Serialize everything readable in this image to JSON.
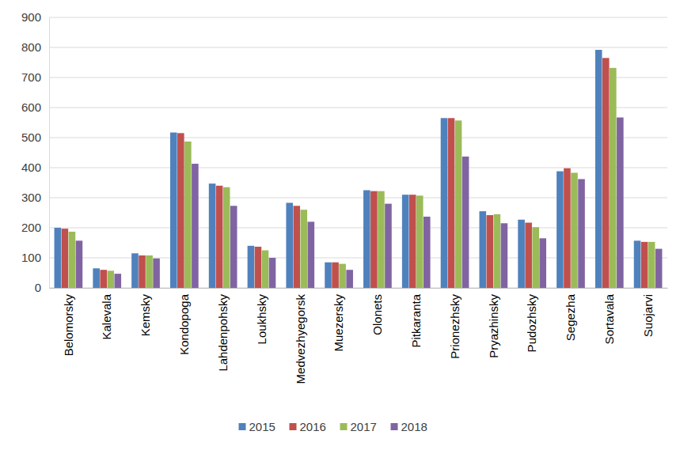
{
  "chart_data": {
    "type": "bar",
    "categories": [
      "Belomorsky",
      "Kalevala",
      "Kemsky",
      "Kondopoga",
      "Lahdenpohsky",
      "Loukhsky",
      "Medvezhyegorsk",
      "Muezersky",
      "Olonets",
      "Pitkaranta",
      "Prionezhsky",
      "Pryazhinsky",
      "Pudozhsky",
      "Segezha",
      "Sortavala",
      "Suojarvi"
    ],
    "series": [
      {
        "name": "2015",
        "color": "#4f81bd",
        "values": [
          200,
          65,
          115,
          517,
          347,
          140,
          283,
          85,
          325,
          310,
          565,
          255,
          227,
          388,
          792,
          157
        ]
      },
      {
        "name": "2016",
        "color": "#c0504d",
        "values": [
          197,
          60,
          108,
          515,
          340,
          137,
          273,
          85,
          322,
          310,
          565,
          242,
          217,
          398,
          765,
          153
        ]
      },
      {
        "name": "2017",
        "color": "#9bbb59",
        "values": [
          187,
          57,
          108,
          487,
          335,
          125,
          260,
          80,
          322,
          307,
          557,
          245,
          202,
          383,
          732,
          153
        ]
      },
      {
        "name": "2018",
        "color": "#8064a2",
        "values": [
          157,
          47,
          98,
          413,
          273,
          100,
          220,
          60,
          280,
          237,
          437,
          215,
          165,
          362,
          567,
          130
        ]
      }
    ],
    "ylim": [
      0,
      900
    ],
    "yticks": [
      0,
      100,
      200,
      300,
      400,
      500,
      600,
      700,
      800,
      900
    ],
    "grid": true,
    "legend": "bottom"
  }
}
